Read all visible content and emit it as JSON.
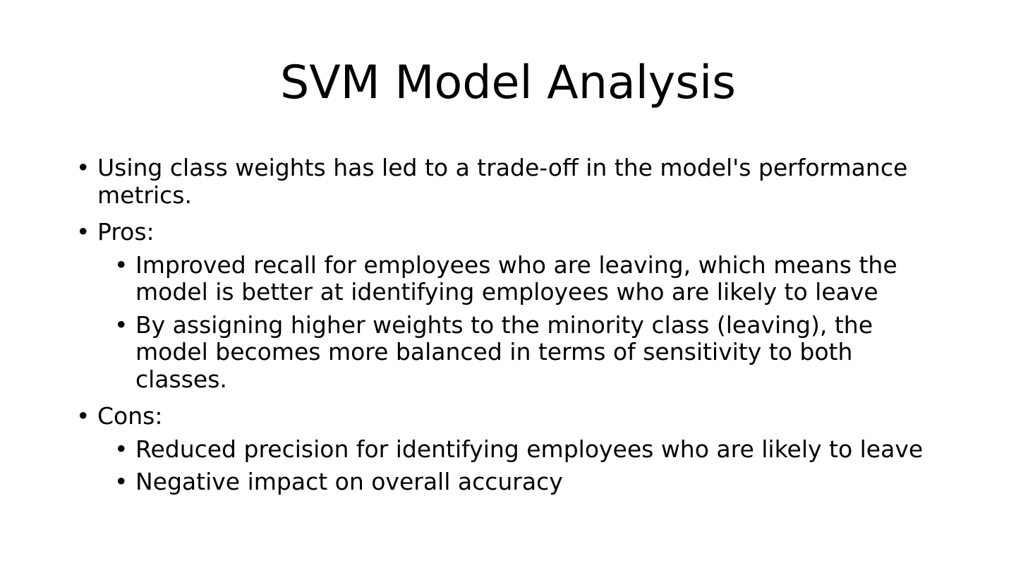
{
  "slide": {
    "title": "SVM Model Analysis",
    "bullets": {
      "intro": "Using class weights has led to a trade-off in the model's performance metrics.",
      "pros_label": "Pros:",
      "pros": [
        "Improved recall for employees who are leaving, which means the model is better at identifying employees who are likely to leave",
        "By assigning higher weights to the minority class (leaving), the model becomes more balanced in terms of sensitivity to both classes."
      ],
      "cons_label": "Cons:",
      "cons": [
        "Reduced precision for identifying employees who are likely to leave",
        "Negative impact on overall accuracy"
      ]
    }
  }
}
